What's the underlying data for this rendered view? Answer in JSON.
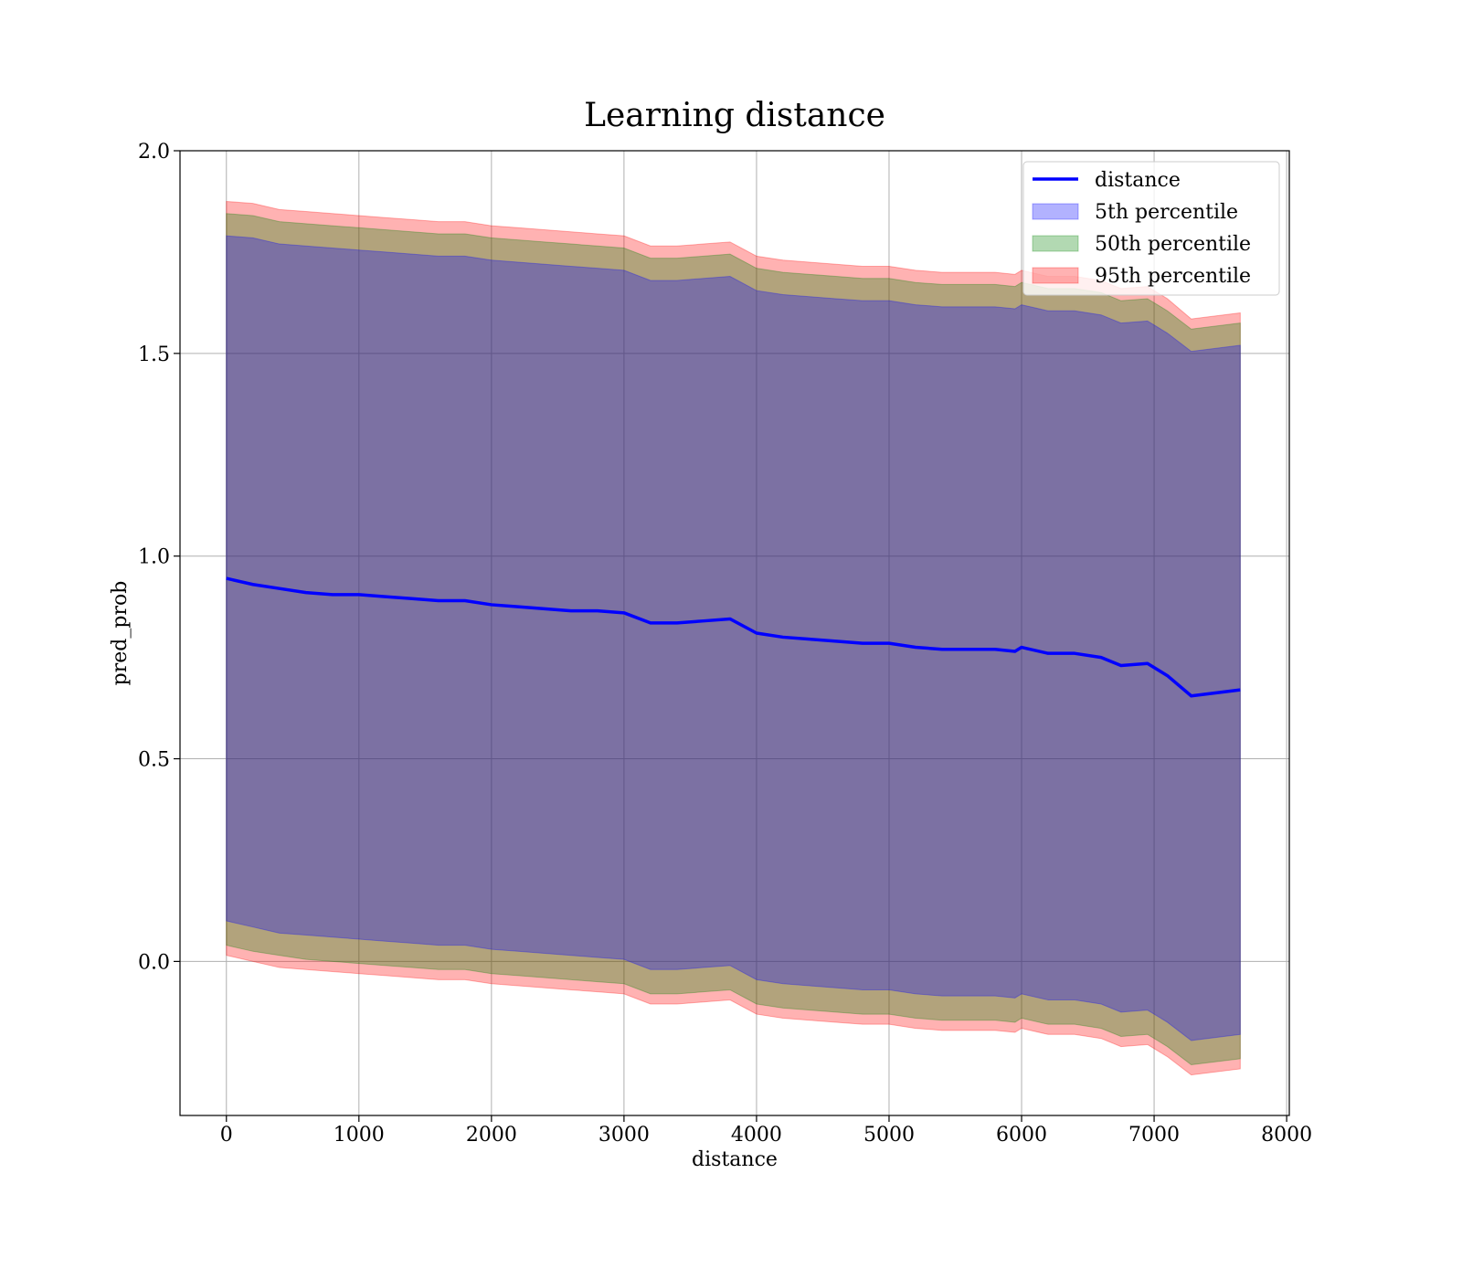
{
  "chart_data": {
    "type": "area",
    "title": "Learning distance",
    "xlabel": "distance",
    "ylabel": "pred_prob",
    "xlim": [
      -350,
      8020
    ],
    "ylim": [
      -0.38,
      2.0
    ],
    "xticks": [
      0,
      1000,
      2000,
      3000,
      4000,
      5000,
      6000,
      7000,
      8000
    ],
    "yticks": [
      0.0,
      0.5,
      1.0,
      1.5,
      2.0
    ],
    "xtick_labels": [
      "0",
      "1000",
      "2000",
      "3000",
      "4000",
      "5000",
      "6000",
      "7000",
      "8000"
    ],
    "ytick_labels": [
      "0.0",
      "0.5",
      "1.0",
      "1.5",
      "2.0"
    ],
    "grid": true,
    "legend_position": "top-right",
    "x": [
      0,
      200,
      400,
      600,
      800,
      1000,
      1200,
      1400,
      1600,
      1800,
      2000,
      2200,
      2400,
      2600,
      2800,
      3000,
      3200,
      3400,
      3600,
      3800,
      4000,
      4200,
      4400,
      4600,
      4800,
      5000,
      5200,
      5400,
      5600,
      5800,
      5950,
      6000,
      6200,
      6400,
      6600,
      6750,
      6950,
      7100,
      7280,
      7650
    ],
    "series": [
      {
        "name": "distance",
        "kind": "line",
        "color": "#0000ff",
        "values": [
          0.945,
          0.93,
          0.92,
          0.91,
          0.905,
          0.905,
          0.9,
          0.895,
          0.89,
          0.89,
          0.88,
          0.875,
          0.87,
          0.865,
          0.865,
          0.86,
          0.835,
          0.835,
          0.84,
          0.845,
          0.81,
          0.8,
          0.795,
          0.79,
          0.785,
          0.785,
          0.775,
          0.77,
          0.77,
          0.77,
          0.765,
          0.775,
          0.76,
          0.76,
          0.75,
          0.73,
          0.735,
          0.705,
          0.655,
          0.67
        ]
      },
      {
        "name": "5th percentile",
        "kind": "band",
        "color": "#0000ff",
        "upper": [
          1.79,
          1.785,
          1.77,
          1.765,
          1.76,
          1.755,
          1.75,
          1.745,
          1.74,
          1.74,
          1.73,
          1.725,
          1.72,
          1.715,
          1.71,
          1.705,
          1.68,
          1.68,
          1.685,
          1.69,
          1.655,
          1.645,
          1.64,
          1.635,
          1.63,
          1.63,
          1.62,
          1.615,
          1.615,
          1.615,
          1.61,
          1.62,
          1.605,
          1.605,
          1.595,
          1.575,
          1.58,
          1.55,
          1.505,
          1.52
        ],
        "lower": [
          0.1,
          0.085,
          0.07,
          0.065,
          0.06,
          0.055,
          0.05,
          0.045,
          0.04,
          0.04,
          0.03,
          0.025,
          0.02,
          0.015,
          0.01,
          0.005,
          -0.02,
          -0.02,
          -0.015,
          -0.01,
          -0.045,
          -0.055,
          -0.06,
          -0.065,
          -0.07,
          -0.07,
          -0.08,
          -0.085,
          -0.085,
          -0.085,
          -0.09,
          -0.08,
          -0.095,
          -0.095,
          -0.105,
          -0.125,
          -0.12,
          -0.15,
          -0.195,
          -0.18
        ]
      },
      {
        "name": "50th percentile",
        "kind": "band",
        "color": "#008000",
        "upper": [
          1.845,
          1.84,
          1.825,
          1.82,
          1.815,
          1.81,
          1.805,
          1.8,
          1.795,
          1.795,
          1.785,
          1.78,
          1.775,
          1.77,
          1.765,
          1.76,
          1.735,
          1.735,
          1.74,
          1.745,
          1.71,
          1.7,
          1.695,
          1.69,
          1.685,
          1.685,
          1.675,
          1.67,
          1.67,
          1.67,
          1.665,
          1.675,
          1.66,
          1.66,
          1.65,
          1.63,
          1.635,
          1.605,
          1.56,
          1.575
        ],
        "lower": [
          0.04,
          0.025,
          0.015,
          0.005,
          0.0,
          -0.005,
          -0.01,
          -0.015,
          -0.02,
          -0.02,
          -0.03,
          -0.035,
          -0.04,
          -0.045,
          -0.05,
          -0.055,
          -0.08,
          -0.08,
          -0.075,
          -0.07,
          -0.105,
          -0.115,
          -0.12,
          -0.125,
          -0.13,
          -0.13,
          -0.14,
          -0.145,
          -0.145,
          -0.145,
          -0.15,
          -0.14,
          -0.155,
          -0.155,
          -0.165,
          -0.185,
          -0.18,
          -0.21,
          -0.255,
          -0.24
        ]
      },
      {
        "name": "95th percentile",
        "kind": "band",
        "color": "#ff0000",
        "upper": [
          1.875,
          1.87,
          1.855,
          1.85,
          1.845,
          1.84,
          1.835,
          1.83,
          1.825,
          1.825,
          1.815,
          1.81,
          1.805,
          1.8,
          1.795,
          1.79,
          1.765,
          1.765,
          1.77,
          1.775,
          1.74,
          1.73,
          1.725,
          1.72,
          1.715,
          1.715,
          1.705,
          1.7,
          1.7,
          1.7,
          1.695,
          1.705,
          1.69,
          1.69,
          1.68,
          1.66,
          1.665,
          1.635,
          1.585,
          1.6
        ],
        "lower": [
          0.015,
          0.0,
          -0.015,
          -0.02,
          -0.025,
          -0.03,
          -0.035,
          -0.04,
          -0.045,
          -0.045,
          -0.055,
          -0.06,
          -0.065,
          -0.07,
          -0.075,
          -0.08,
          -0.105,
          -0.105,
          -0.1,
          -0.095,
          -0.13,
          -0.14,
          -0.145,
          -0.15,
          -0.155,
          -0.155,
          -0.165,
          -0.17,
          -0.17,
          -0.17,
          -0.175,
          -0.165,
          -0.18,
          -0.18,
          -0.19,
          -0.21,
          -0.205,
          -0.235,
          -0.28,
          -0.265
        ]
      }
    ]
  }
}
